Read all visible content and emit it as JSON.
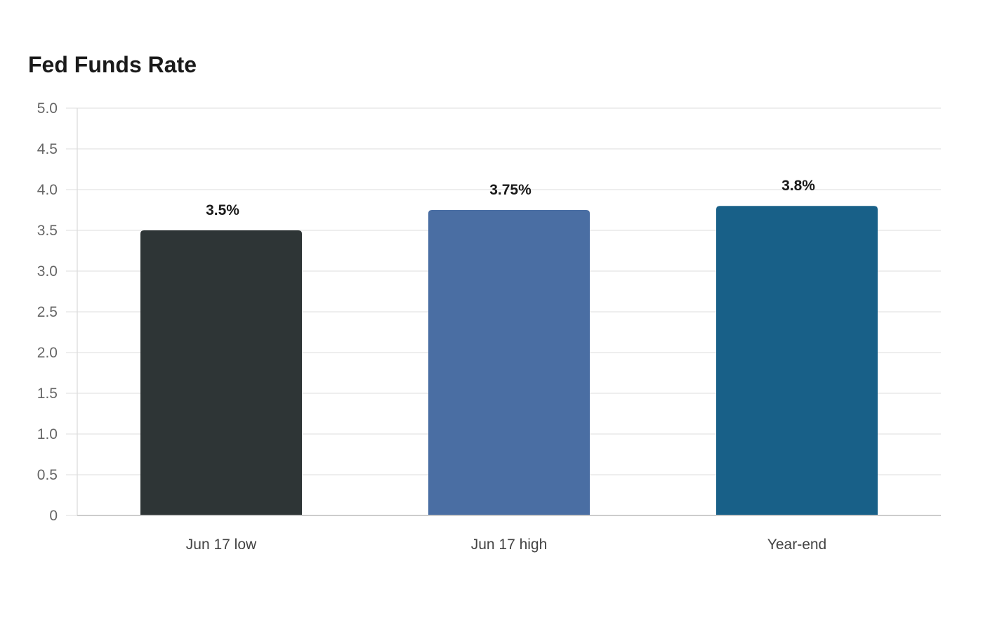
{
  "chart_data": {
    "type": "bar",
    "title": "Fed Funds Rate",
    "categories": [
      "Jun 17 low",
      "Jun 17 high",
      "Year-end"
    ],
    "values": [
      3.5,
      3.75,
      3.8
    ],
    "value_labels": [
      "3.5%",
      "3.75%",
      "3.8%"
    ],
    "colors": [
      "#2e3536",
      "#4a6ea3",
      "#186088"
    ],
    "ylim": [
      0,
      5
    ],
    "yticks": [
      0,
      0.5,
      1.0,
      1.5,
      2.0,
      2.5,
      3.0,
      3.5,
      4.0,
      4.5,
      5.0
    ],
    "ytick_labels": [
      "0",
      "0.5",
      "1.0",
      "1.5",
      "2.0",
      "2.5",
      "3.0",
      "3.5",
      "4.0",
      "4.5",
      "5.0"
    ],
    "xlabel": "",
    "ylabel": "",
    "grid": true,
    "legend": "none"
  }
}
